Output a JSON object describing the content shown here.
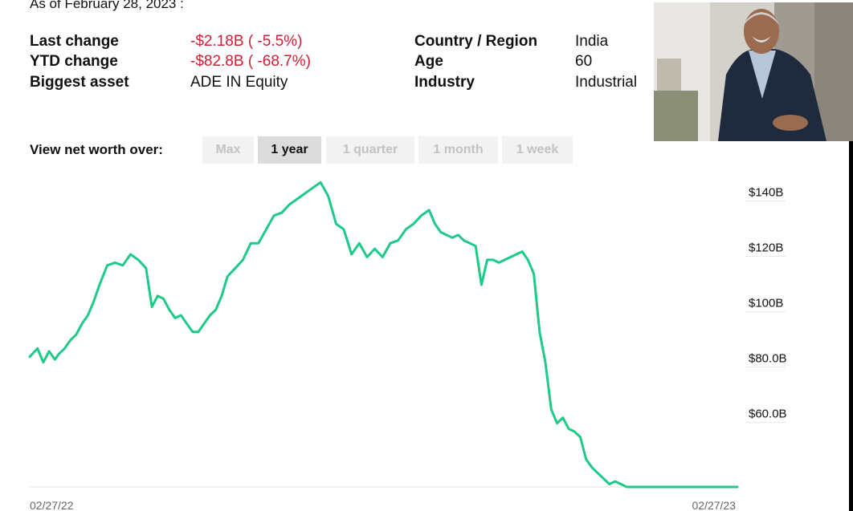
{
  "header": {
    "as_of": "As of February 28, 2023 :"
  },
  "stats": {
    "last_change": {
      "label": "Last change",
      "value": "-$2.18B ( -5.5%)"
    },
    "ytd_change": {
      "label": "YTD change",
      "value": "-$82.8B ( -68.7%)"
    },
    "biggest_asset": {
      "label": "Biggest asset",
      "value": "ADE IN Equity"
    },
    "country": {
      "label": "Country / Region",
      "value": "India"
    },
    "age": {
      "label": "Age",
      "value": "60"
    },
    "industry": {
      "label": "Industry",
      "value": "Industrial"
    }
  },
  "colors": {
    "negative": "#d11d36",
    "line": "#1ec98a",
    "axis_text": "#666666"
  },
  "range_selector": {
    "label": "View net worth over:",
    "options": [
      "Max",
      "1 year",
      "1 quarter",
      "1 month",
      "1 week"
    ],
    "selected": "1 year"
  },
  "photo": {
    "icon": "person-portrait-photo"
  },
  "chart_data": {
    "type": "line",
    "title": "",
    "xlabel": "",
    "ylabel": "",
    "x_ticks": [
      "02/27/22",
      "02/27/23"
    ],
    "y_ticks": [
      "$60.0B",
      "$80.0B",
      "$100B",
      "$120B",
      "$140B"
    ],
    "y_tick_values": [
      60,
      80,
      100,
      120,
      140
    ],
    "ylim": [
      35,
      150
    ],
    "xlim": [
      0,
      365
    ],
    "grid": false,
    "legend": "none",
    "series": [
      {
        "x": [
          0,
          4,
          7,
          10,
          13,
          15,
          18,
          21,
          24,
          27,
          30,
          33,
          36,
          40,
          44,
          48,
          52,
          56,
          60,
          63,
          66,
          69,
          72,
          75,
          78,
          81,
          84,
          87,
          90,
          93,
          96,
          99,
          102,
          106,
          110,
          114,
          118,
          122,
          126,
          130,
          134,
          138,
          142,
          146,
          150,
          154,
          158,
          162,
          166,
          170,
          174,
          178,
          182,
          186,
          190,
          194,
          198,
          202,
          206,
          209,
          212,
          215,
          218,
          221,
          224,
          227,
          230,
          233,
          236,
          239,
          242,
          245,
          248,
          251,
          254,
          257,
          260,
          263,
          266,
          269,
          272,
          275,
          278,
          281,
          284,
          287,
          290,
          293,
          296,
          299,
          302,
          305,
          308,
          311,
          314,
          317,
          320,
          323,
          326,
          329,
          332,
          335,
          338,
          341,
          344,
          347,
          350,
          353,
          356,
          359,
          362,
          365
        ],
        "values": [
          82,
          85,
          80,
          84,
          81,
          83,
          85,
          88,
          90,
          94,
          97,
          102,
          108,
          115,
          116,
          115,
          119,
          117,
          114,
          100,
          104,
          103,
          99,
          96,
          97,
          94,
          91,
          91,
          94,
          97,
          99,
          104,
          111,
          114,
          117,
          123,
          123,
          128,
          133,
          134,
          137,
          139,
          141,
          143,
          145,
          140,
          130,
          128,
          119,
          123,
          118,
          121,
          118,
          123,
          124,
          128,
          130,
          133,
          135,
          130,
          127,
          126,
          125,
          126,
          124,
          123,
          122,
          108,
          117,
          117,
          116,
          117,
          118,
          119,
          120,
          117,
          112,
          91,
          80,
          63,
          58,
          60,
          56,
          55,
          53,
          45,
          42,
          40,
          38,
          36,
          37,
          36,
          35,
          35,
          35,
          35,
          35,
          35,
          35,
          35,
          35,
          35,
          35,
          35,
          35,
          35,
          35,
          35,
          35,
          35,
          35,
          35
        ]
      }
    ]
  }
}
